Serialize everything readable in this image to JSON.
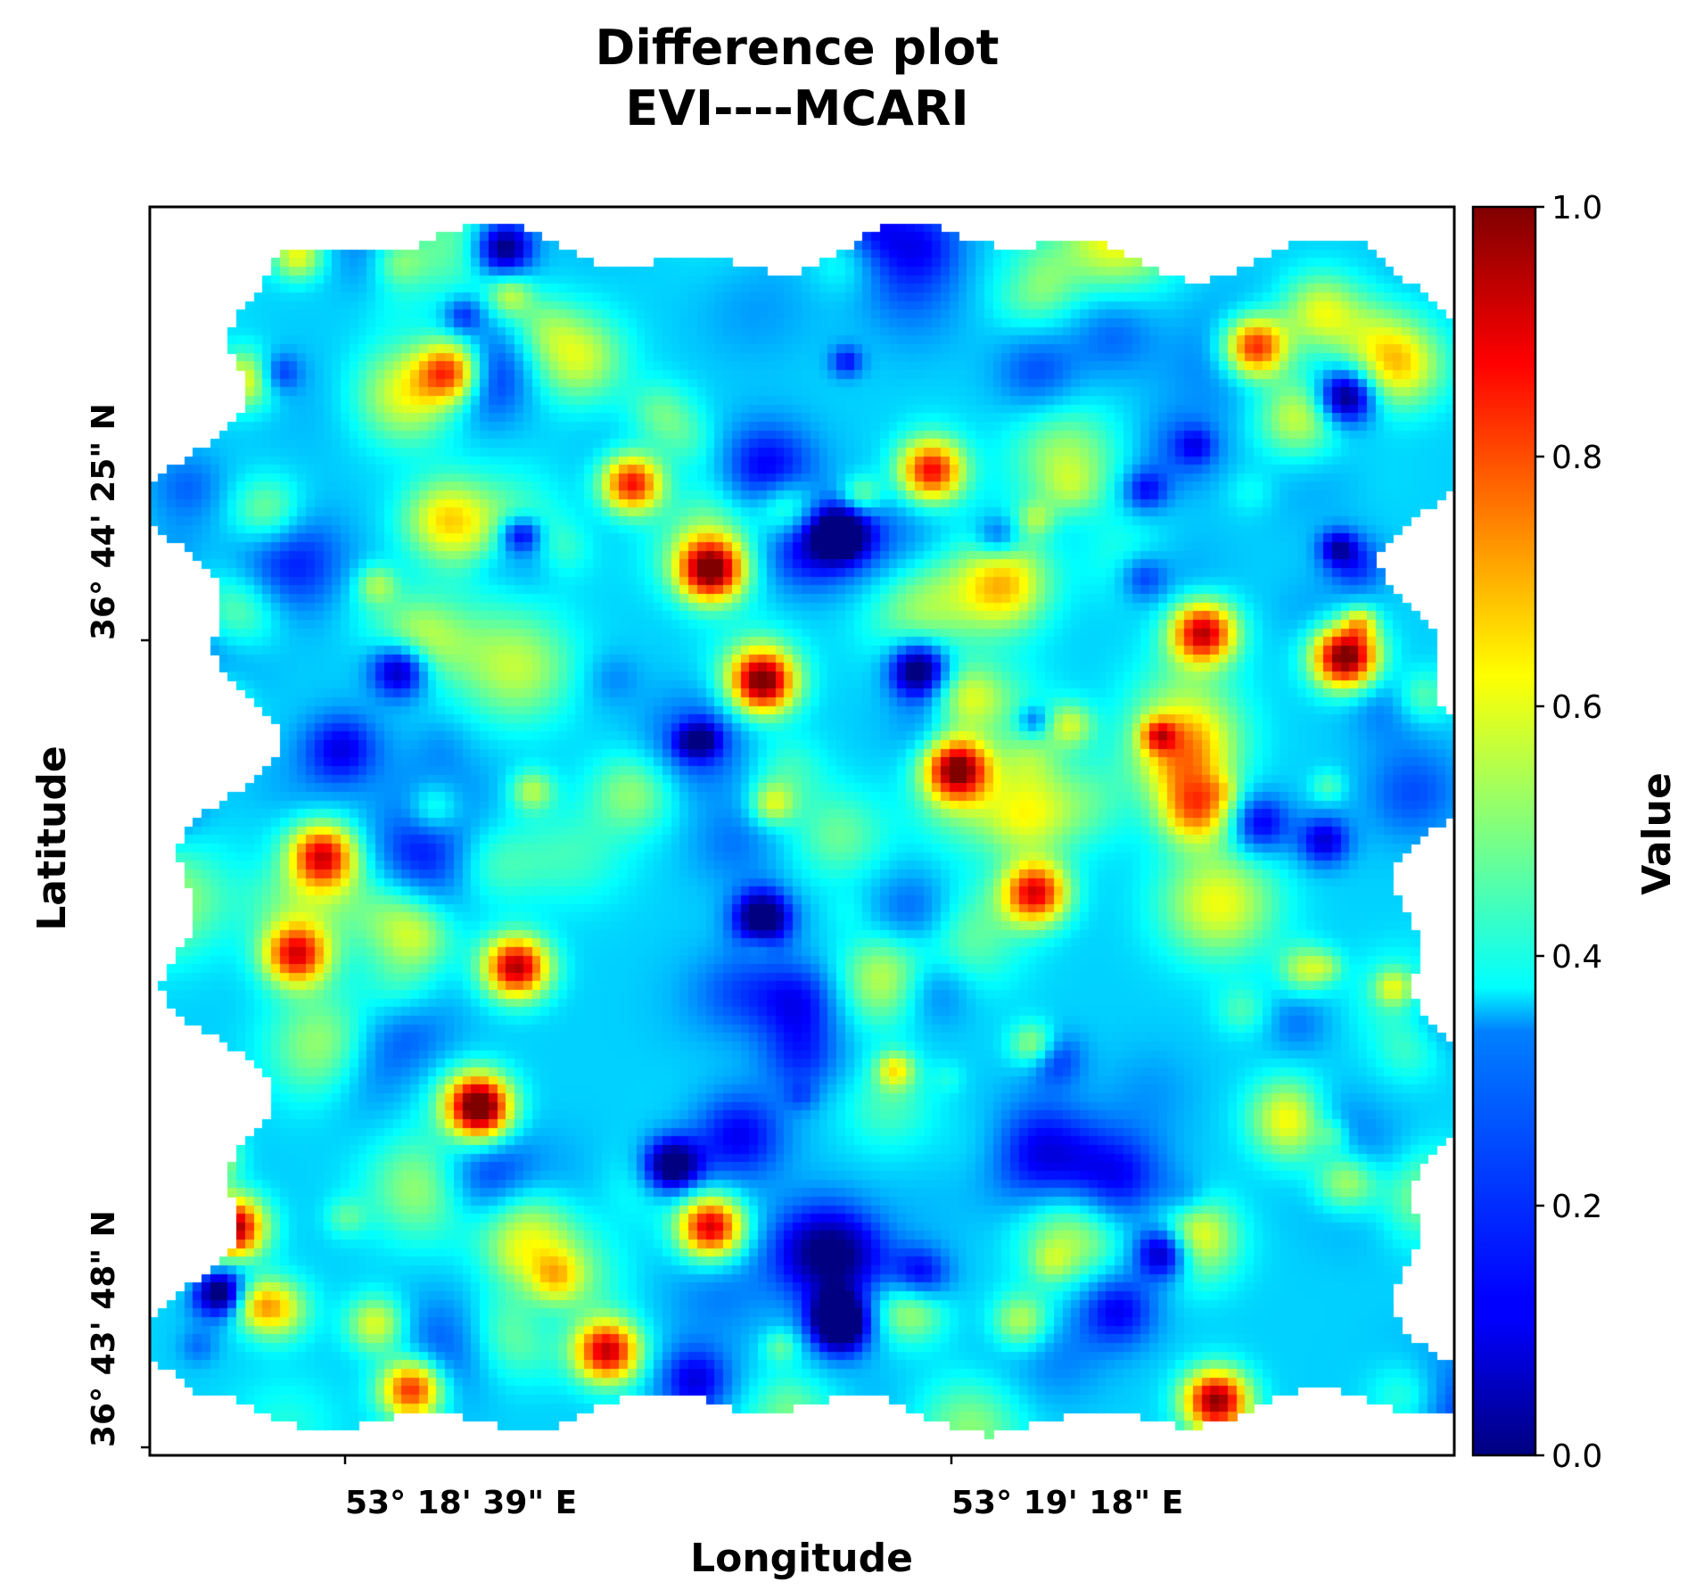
{
  "chart_data": {
    "type": "heatmap",
    "title": "Difference plot",
    "subtitle": "EVI----MCARI",
    "xlabel": "Longitude",
    "ylabel": "Latitude",
    "x_ticks": [
      "53° 18' 39\" E",
      "53° 19' 18\" E"
    ],
    "y_ticks": [
      "36° 44' 25\" N",
      "36° 43' 48\" N"
    ],
    "colormap": "jet",
    "colorbar": {
      "label": "Value",
      "range": [
        0.0,
        1.0
      ],
      "ticks": [
        "0.0",
        "0.2",
        "0.4",
        "0.6",
        "0.8",
        "1.0"
      ],
      "tick_values": [
        0.0,
        0.2,
        0.4,
        0.6,
        0.8,
        1.0
      ]
    },
    "value_range": [
      0.0,
      1.0
    ],
    "grid": false,
    "hotspots": [
      {
        "x": 0.06,
        "y": 0.82,
        "value": 0.95
      },
      {
        "x": 0.25,
        "y": 0.72,
        "value": 0.92
      },
      {
        "x": 0.28,
        "y": 0.61,
        "value": 0.92
      },
      {
        "x": 0.47,
        "y": 0.38,
        "value": 0.93
      },
      {
        "x": 0.43,
        "y": 0.29,
        "value": 0.95
      },
      {
        "x": 0.37,
        "y": 0.22,
        "value": 0.98
      },
      {
        "x": 0.92,
        "y": 0.36,
        "value": 1.0
      },
      {
        "x": 0.62,
        "y": 0.45,
        "value": 0.95
      },
      {
        "x": 0.81,
        "y": 0.34,
        "value": 0.9
      },
      {
        "x": 0.85,
        "y": 0.11,
        "value": 0.9
      },
      {
        "x": 0.6,
        "y": 0.21,
        "value": 0.85
      },
      {
        "x": 0.43,
        "y": 0.82,
        "value": 0.9
      },
      {
        "x": 0.82,
        "y": 0.96,
        "value": 0.95
      },
      {
        "x": 0.2,
        "y": 0.95,
        "value": 0.93
      },
      {
        "x": 0.35,
        "y": 0.92,
        "value": 0.9
      },
      {
        "x": 0.68,
        "y": 0.55,
        "value": 0.88
      },
      {
        "x": 0.23,
        "y": 0.13,
        "value": 0.85
      },
      {
        "x": 0.11,
        "y": 0.6,
        "value": 0.85
      },
      {
        "x": 0.13,
        "y": 0.52,
        "value": 0.82
      }
    ],
    "lowspots": [
      {
        "x": 0.59,
        "y": 0.37,
        "value": 0.05
      },
      {
        "x": 0.47,
        "y": 0.57,
        "value": 0.05
      },
      {
        "x": 0.53,
        "y": 0.26,
        "value": 0.06
      },
      {
        "x": 0.78,
        "y": 0.84,
        "value": 0.06
      },
      {
        "x": 0.53,
        "y": 0.9,
        "value": 0.05
      },
      {
        "x": 0.05,
        "y": 0.87,
        "value": 0.06
      },
      {
        "x": 0.92,
        "y": 0.15,
        "value": 0.05
      },
      {
        "x": 0.4,
        "y": 0.77,
        "value": 0.05
      },
      {
        "x": 0.19,
        "y": 0.37,
        "value": 0.1
      },
      {
        "x": 0.27,
        "y": 0.03,
        "value": 0.08
      }
    ]
  }
}
